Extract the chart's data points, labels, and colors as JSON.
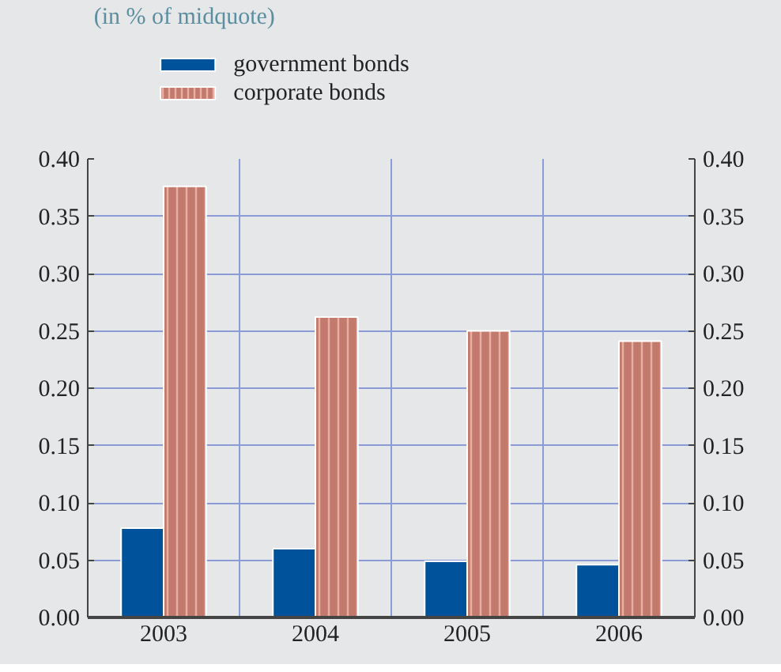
{
  "chart_data": {
    "type": "bar",
    "subtitle": "(in % of midquote)",
    "categories": [
      "2003",
      "2004",
      "2005",
      "2006"
    ],
    "series": [
      {
        "name": "government bonds",
        "color": "#00529b",
        "values": [
          0.078,
          0.06,
          0.049,
          0.046
        ]
      },
      {
        "name": "corporate bonds",
        "color": "#c27a6c",
        "values": [
          0.376,
          0.262,
          0.25,
          0.241
        ]
      }
    ],
    "ylim": [
      0,
      0.4
    ],
    "yticks": [
      {
        "value": 0,
        "label": "0.00"
      },
      {
        "value": 0.05,
        "label": "0.05"
      },
      {
        "value": 0.1,
        "label": "0.10"
      },
      {
        "value": 0.15,
        "label": "0.15"
      },
      {
        "value": 0.2,
        "label": "0.20"
      },
      {
        "value": 0.25,
        "label": "0.25"
      },
      {
        "value": 0.3,
        "label": "0.30"
      },
      {
        "value": 0.35,
        "label": "0.35"
      },
      {
        "value": 0.4,
        "label": "0.40"
      }
    ],
    "y2lim": [
      0,
      0.4
    ],
    "y2ticks": [
      {
        "value": 0,
        "label": "0.00"
      },
      {
        "value": 0.05,
        "label": "0.05"
      },
      {
        "value": 0.1,
        "label": "0.10"
      },
      {
        "value": 0.15,
        "label": "0.15"
      },
      {
        "value": 0.2,
        "label": "0.20"
      },
      {
        "value": 0.25,
        "label": "0.25"
      },
      {
        "value": 0.3,
        "label": "0.30"
      },
      {
        "value": 0.35,
        "label": "0.35"
      },
      {
        "value": 0.4,
        "label": "0.40"
      }
    ],
    "grid": true,
    "legend": "top left"
  }
}
